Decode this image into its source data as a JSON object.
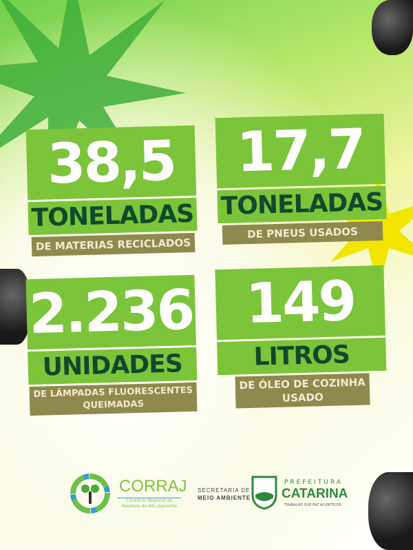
{
  "stats": [
    {
      "value": "38,5",
      "unit": "TONELADAS",
      "description": [
        "DE MATERIAS RECICLADOS"
      ]
    },
    {
      "value": "17,7",
      "unit": "TONELADAS",
      "description": [
        "DE PNEUS USADOS"
      ]
    },
    {
      "value": "2.236",
      "unit": "UNIDADES",
      "description": [
        "DE LÂMPADAS FLUORESCENTES",
        "QUEIMADAS"
      ]
    },
    {
      "value": "149",
      "unit": "LITROS",
      "description": [
        "DE ÓLEO DE COZINHA",
        "USADO"
      ]
    }
  ],
  "footer": {
    "corraj": {
      "name": "CORRAJ",
      "tagline": "Consórcio Regional de Resíduos do Alto Jaguaribe"
    },
    "secretaria": {
      "line1": "SECRETARIA DE",
      "line2": "MEIO AMBIENTE"
    },
    "prefeitura": {
      "line1": "PREFEITURA",
      "line2": "CATARINA",
      "tagline": "TRABALHO QUE FAZ ACONTECER"
    }
  },
  "colors": {
    "green": "#7cc43a",
    "dark_green": "#0e4a2c",
    "olive": "#8e8a4e",
    "cream": "#f3ead0",
    "yellow": "#f2e600"
  }
}
